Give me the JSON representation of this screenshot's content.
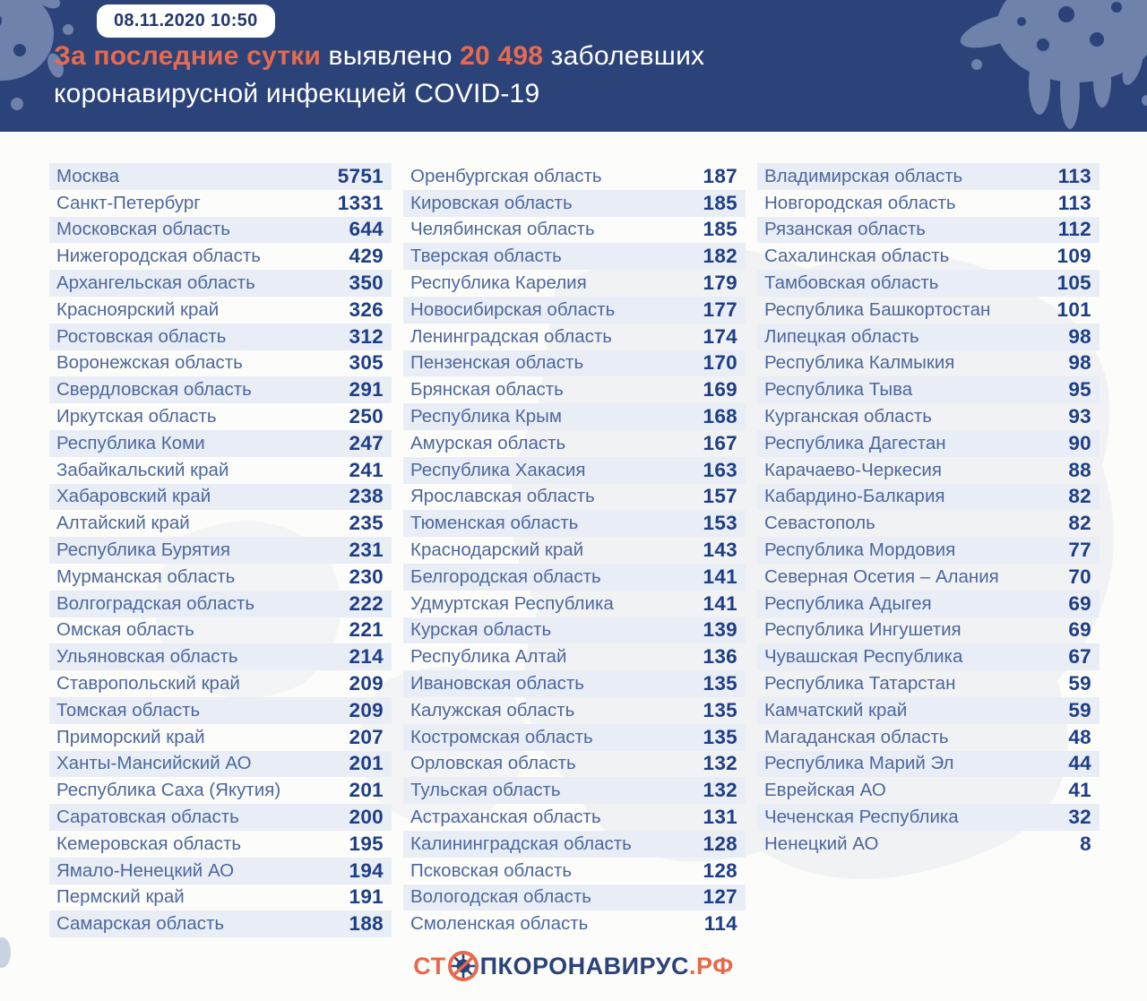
{
  "header": {
    "timestamp": "08.11.2020 10:50",
    "headline": {
      "highlight1": "За последние сутки",
      "text1": " выявлено ",
      "count": "20 498",
      "text2": " заболевших",
      "line2": "коронавирусной инфекцией COVID-19"
    }
  },
  "chart_data": {
    "type": "table",
    "title": "За последние сутки выявлено 20 498 заболевших коронавирусной инфекцией COVID-19",
    "total_new_cases": 20498,
    "date": "08.11.2020 10:50",
    "columns": [
      {
        "rows": [
          {
            "region": "Москва",
            "value": "5751"
          },
          {
            "region": "Санкт-Петербург",
            "value": "1331"
          },
          {
            "region": "Московская область",
            "value": "644"
          },
          {
            "region": "Нижегородская область",
            "value": "429"
          },
          {
            "region": "Архангельская область",
            "value": "350"
          },
          {
            "region": "Красноярский край",
            "value": "326"
          },
          {
            "region": "Ростовская область",
            "value": "312"
          },
          {
            "region": "Воронежская область",
            "value": "305"
          },
          {
            "region": "Свердловская область",
            "value": "291"
          },
          {
            "region": "Иркутская область",
            "value": "250"
          },
          {
            "region": "Республика Коми",
            "value": "247"
          },
          {
            "region": "Забайкальский край",
            "value": "241"
          },
          {
            "region": "Хабаровский край",
            "value": "238"
          },
          {
            "region": "Алтайский край",
            "value": "235"
          },
          {
            "region": "Республика Бурятия",
            "value": "231"
          },
          {
            "region": "Мурманская область",
            "value": "230"
          },
          {
            "region": "Волгоградская область",
            "value": "222"
          },
          {
            "region": "Омская область",
            "value": "221"
          },
          {
            "region": "Ульяновская область",
            "value": "214"
          },
          {
            "region": "Ставропольский край",
            "value": "209"
          },
          {
            "region": "Томская область",
            "value": "209"
          },
          {
            "region": "Приморский край",
            "value": "207"
          },
          {
            "region": "Ханты-Мансийский АО",
            "value": "201"
          },
          {
            "region": "Республика Саха (Якутия)",
            "value": "201"
          },
          {
            "region": "Саратовская область",
            "value": "200"
          },
          {
            "region": "Кемеровская область",
            "value": "195"
          },
          {
            "region": "Ямало-Ненецкий АО",
            "value": "194"
          },
          {
            "region": "Пермский край",
            "value": "191"
          },
          {
            "region": "Самарская область",
            "value": "188"
          }
        ]
      },
      {
        "rows": [
          {
            "region": "Оренбургская область",
            "value": "187"
          },
          {
            "region": "Кировская область",
            "value": "185"
          },
          {
            "region": "Челябинская область",
            "value": "185"
          },
          {
            "region": "Тверская область",
            "value": "182"
          },
          {
            "region": "Республика Карелия",
            "value": "179"
          },
          {
            "region": "Новосибирская область",
            "value": "177"
          },
          {
            "region": "Ленинградская область",
            "value": "174"
          },
          {
            "region": "Пензенская область",
            "value": "170"
          },
          {
            "region": "Брянская область",
            "value": "169"
          },
          {
            "region": "Республика Крым",
            "value": "168"
          },
          {
            "region": "Амурская область",
            "value": "167"
          },
          {
            "region": "Республика Хакасия",
            "value": "163"
          },
          {
            "region": "Ярославская область",
            "value": "157"
          },
          {
            "region": "Тюменская область",
            "value": "153"
          },
          {
            "region": "Краснодарский край",
            "value": "143"
          },
          {
            "region": "Белгородская область",
            "value": "141"
          },
          {
            "region": "Удмуртская Республика",
            "value": "141"
          },
          {
            "region": "Курская область",
            "value": "139"
          },
          {
            "region": "Республика Алтай",
            "value": "136"
          },
          {
            "region": "Ивановская область",
            "value": "135"
          },
          {
            "region": "Калужская область",
            "value": "135"
          },
          {
            "region": "Костромская область",
            "value": "135"
          },
          {
            "region": "Орловская область",
            "value": "132"
          },
          {
            "region": "Тульская область",
            "value": "132"
          },
          {
            "region": "Астраханская область",
            "value": "131"
          },
          {
            "region": "Калининградская область",
            "value": "128"
          },
          {
            "region": "Псковская область",
            "value": "128"
          },
          {
            "region": "Вологодская область",
            "value": "127"
          },
          {
            "region": "Смоленская область",
            "value": "114"
          }
        ]
      },
      {
        "rows": [
          {
            "region": "Владимирская область",
            "value": "113"
          },
          {
            "region": "Новгородская область",
            "value": "113"
          },
          {
            "region": "Рязанская область",
            "value": "112"
          },
          {
            "region": "Сахалинская область",
            "value": "109"
          },
          {
            "region": "Тамбовская область",
            "value": "105"
          },
          {
            "region": "Республика Башкортостан",
            "value": "101"
          },
          {
            "region": "Липецкая область",
            "value": "98"
          },
          {
            "region": "Республика Калмыкия",
            "value": "98"
          },
          {
            "region": "Республика Тыва",
            "value": "95"
          },
          {
            "region": "Курганская область",
            "value": "93"
          },
          {
            "region": "Республика Дагестан",
            "value": "90"
          },
          {
            "region": "Карачаево-Черкесия",
            "value": "88"
          },
          {
            "region": "Кабардино-Балкария",
            "value": "82"
          },
          {
            "region": "Севастополь",
            "value": "82"
          },
          {
            "region": "Республика Мордовия",
            "value": "77"
          },
          {
            "region": "Северная Осетия – Алания",
            "value": "70"
          },
          {
            "region": "Республика Адыгея",
            "value": "69"
          },
          {
            "region": "Республика Ингушетия",
            "value": "69"
          },
          {
            "region": "Чувашская Республика",
            "value": "67"
          },
          {
            "region": "Республика Татарстан",
            "value": "59"
          },
          {
            "region": "Камчатский край",
            "value": "59"
          },
          {
            "region": "Магаданская область",
            "value": "48"
          },
          {
            "region": "Республика Марий Эл",
            "value": "44"
          },
          {
            "region": "Еврейская АО",
            "value": "41"
          },
          {
            "region": "Чеченская Республика",
            "value": "32"
          },
          {
            "region": "Ненецкий АО",
            "value": "8"
          }
        ]
      }
    ]
  },
  "footer": {
    "logo_prefix": "СТ",
    "logo_middle": "ПКОРОНАВИРУС",
    "logo_suffix": ".РФ"
  },
  "colors": {
    "header_bg": "#2b4379",
    "accent_orange": "#e66a50",
    "logo_orange": "#e8684a",
    "logo_navy": "#2b4379",
    "region_name_blue": "#4d689c",
    "value_navy": "#1d3e86",
    "row_stripe": "#e9edf5",
    "splat_blue": "#6e82ab"
  }
}
